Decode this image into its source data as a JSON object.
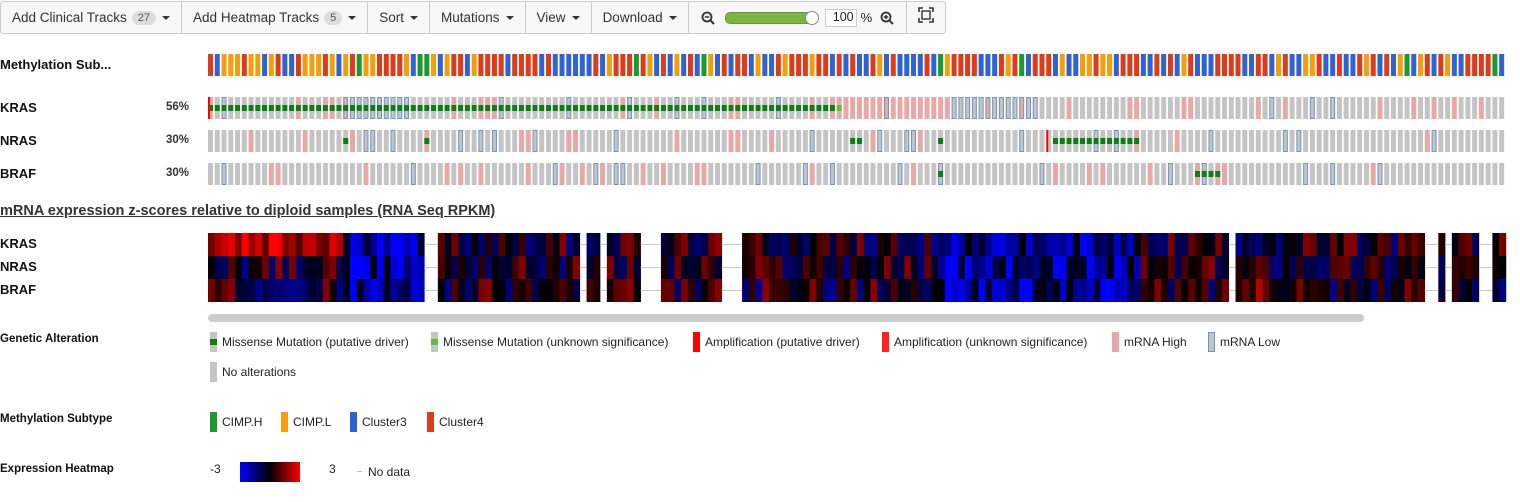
{
  "toolbar": {
    "add_clinical": "Add Clinical Tracks",
    "add_clinical_count": "27",
    "add_heatmap": "Add Heatmap Tracks",
    "add_heatmap_count": "5",
    "sort": "Sort",
    "mutations": "Mutations",
    "view": "View",
    "download": "Download",
    "zoom_value": "100",
    "zoom_unit": "%",
    "zoom_level": 1.0
  },
  "tracks": {
    "methylation_label": "Methylation Sub...",
    "genes": [
      {
        "name": "KRAS",
        "pct": "56%"
      },
      {
        "name": "NRAS",
        "pct": "30%"
      },
      {
        "name": "BRAF",
        "pct": "30%"
      }
    ]
  },
  "heatmap": {
    "title": "mRNA expression z-scores relative to diploid samples (RNA Seq RPKM)",
    "genes": [
      "KRAS",
      "NRAS",
      "BRAF"
    ]
  },
  "legend": {
    "genetic_title": "Genetic Alteration",
    "genetic_items": [
      "Missense Mutation (putative driver)",
      "Missense Mutation (unknown significance)",
      "Amplification (putative driver)",
      "Amplification (unknown significance)",
      "mRNA High",
      "mRNA Low",
      "No alterations"
    ],
    "methyl_title": "Methylation Subtype",
    "methyl_items": [
      "CIMP.H",
      "CIMP.L",
      "Cluster3",
      "Cluster4"
    ],
    "expr_title": "Expression Heatmap",
    "expr_min": "-3",
    "expr_max": "3",
    "expr_nodata": "No data"
  },
  "colors": {
    "cimp_h": "#1a9a2e",
    "cimp_l": "#f59e0b",
    "cluster3": "#2f62d2",
    "cluster4": "#dc3c1a",
    "no_alt": "#c4c4c4",
    "mrna_high": "#e8a8a8",
    "mrna_low": "#9cb8d6",
    "missense_driver": "#0a7f12",
    "missense_unknown": "#58c23a",
    "amp": "#ff0000"
  }
}
